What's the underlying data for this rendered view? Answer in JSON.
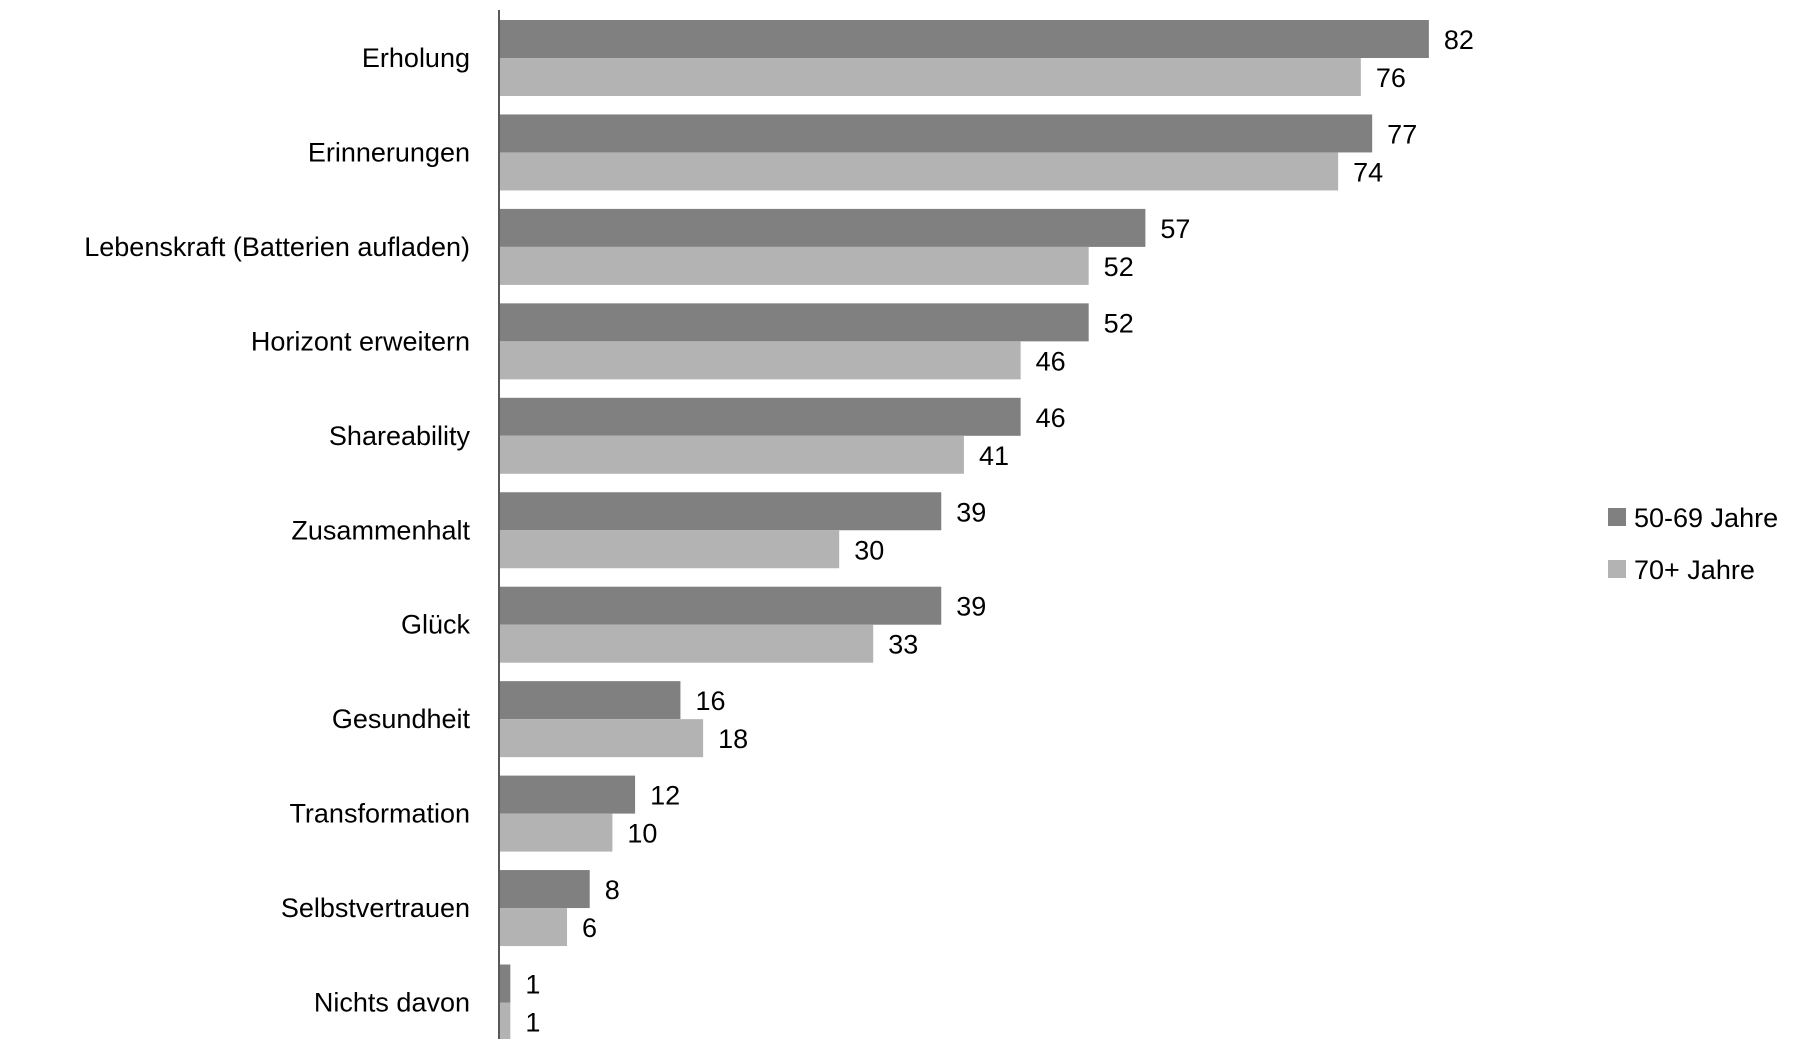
{
  "chart_data": {
    "type": "bar",
    "orientation": "horizontal",
    "categories": [
      "Erholung",
      "Erinnerungen",
      "Lebenskraft (Batterien aufladen)",
      "Horizont erweitern",
      "Shareability",
      "Zusammenhalt",
      "Glück",
      "Gesundheit",
      "Transformation",
      "Selbstvertrauen",
      "Nichts davon"
    ],
    "series": [
      {
        "name": "50-69 Jahre",
        "color": "#808080",
        "values": [
          82,
          77,
          57,
          52,
          46,
          39,
          39,
          16,
          12,
          8,
          1
        ]
      },
      {
        "name": "70+ Jahre",
        "color": "#b3b3b3",
        "values": [
          76,
          74,
          52,
          46,
          41,
          30,
          33,
          18,
          10,
          6,
          1
        ]
      }
    ],
    "value_labels": [
      [
        "82",
        "77",
        "57",
        "52",
        "46",
        "39",
        "39",
        "16",
        "12",
        "8",
        "1"
      ],
      [
        "76",
        "74",
        "52",
        "46",
        "41",
        "30",
        "33",
        "18",
        "10",
        "6",
        "1"
      ]
    ],
    "xlim": [
      0,
      100
    ],
    "grid": false,
    "legend_position": "right"
  }
}
